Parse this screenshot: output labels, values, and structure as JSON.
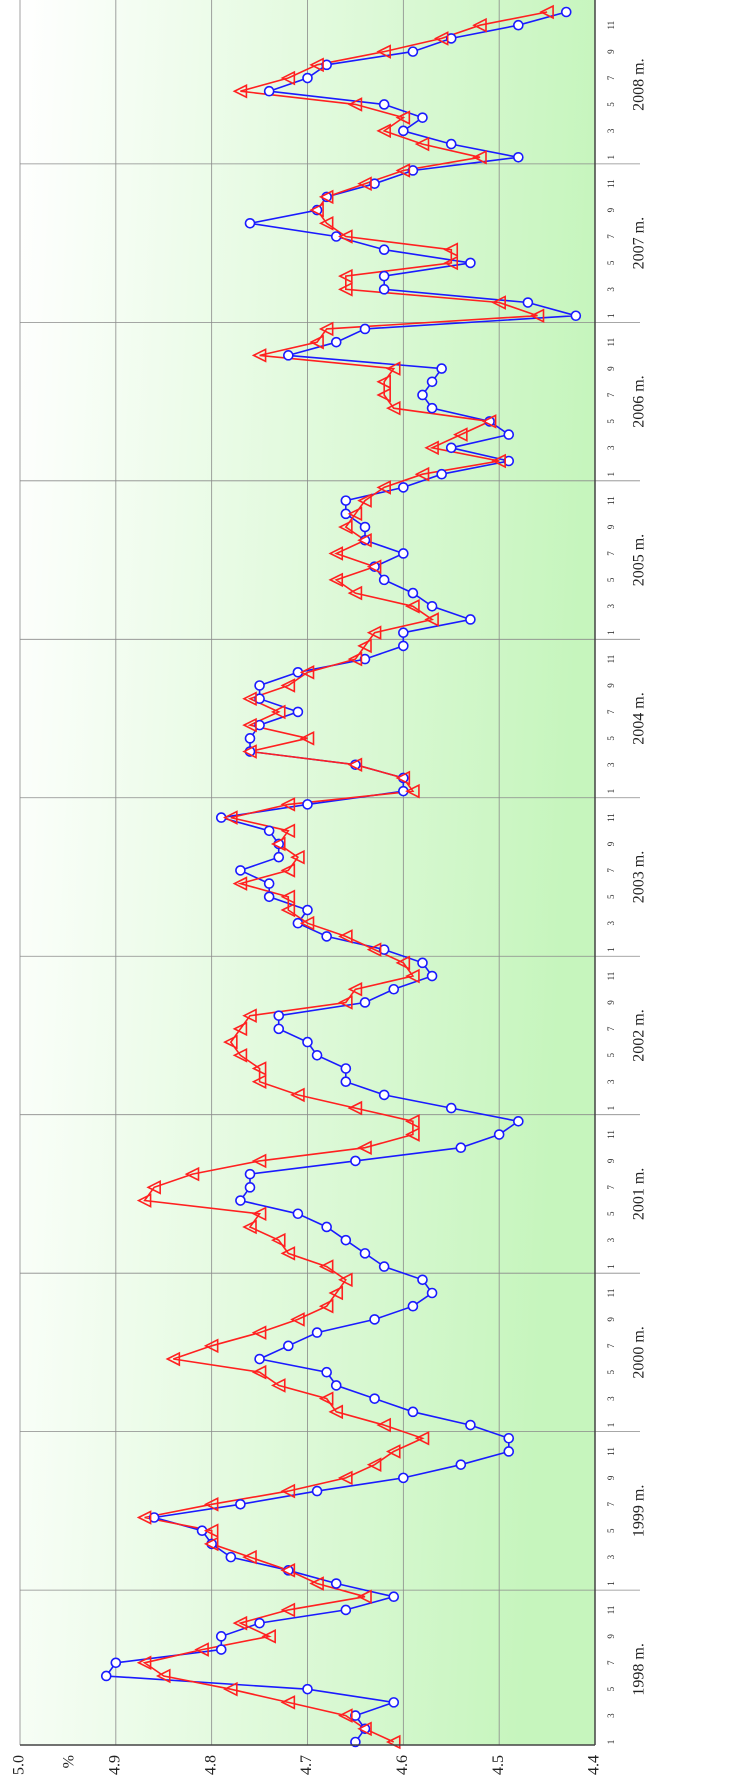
{
  "chart_data": {
    "type": "line",
    "axis_label": "%",
    "years": [
      "1998 m.",
      "1999 m.",
      "2000 m.",
      "2001 m.",
      "2002 m.",
      "2003 m.",
      "2004 m.",
      "2005 m.",
      "2006 m.",
      "2007 m.",
      "2008 m."
    ],
    "month_labels": [
      "1",
      "3",
      "5",
      "7",
      "9",
      "11"
    ],
    "ylim": [
      4.4,
      5.0
    ],
    "yticks": [
      {
        "value": 5.0,
        "label": "5.0"
      },
      4.9,
      4.8,
      4.7,
      4.6,
      4.5,
      4.4
    ],
    "grid": true,
    "series": [
      {
        "color": "#1a1aff",
        "marker": "circle",
        "values": [
          4.65,
          4.64,
          4.65,
          4.61,
          4.7,
          4.91,
          4.9,
          4.79,
          4.79,
          4.75,
          4.66,
          4.61,
          4.67,
          4.72,
          4.78,
          4.8,
          4.81,
          4.86,
          4.77,
          4.69,
          4.6,
          4.54,
          4.49,
          4.49,
          4.53,
          4.59,
          4.63,
          4.67,
          4.68,
          4.75,
          4.72,
          4.69,
          4.63,
          4.59,
          4.57,
          4.58,
          4.62,
          4.64,
          4.66,
          4.68,
          4.71,
          4.77,
          4.76,
          4.76,
          4.65,
          4.54,
          4.5,
          4.48,
          4.55,
          4.62,
          4.66,
          4.66,
          4.69,
          4.7,
          4.73,
          4.73,
          4.64,
          4.61,
          4.57,
          4.58,
          4.62,
          4.68,
          4.71,
          4.7,
          4.74,
          4.74,
          4.77,
          4.73,
          4.73,
          4.74,
          4.79,
          4.7,
          4.6,
          4.6,
          4.65,
          4.76,
          4.76,
          4.75,
          4.71,
          4.75,
          4.75,
          4.71,
          4.64,
          4.6,
          4.6,
          4.53,
          4.57,
          4.59,
          4.62,
          4.63,
          4.6,
          4.64,
          4.64,
          4.66,
          4.66,
          4.6,
          4.56,
          4.49,
          4.55,
          4.49,
          4.51,
          4.57,
          4.58,
          4.57,
          4.56,
          4.72,
          4.67,
          4.64,
          4.42,
          4.47,
          4.62,
          4.62,
          4.53,
          4.62,
          4.67,
          4.76,
          4.69,
          4.68,
          4.63,
          4.59,
          4.48,
          4.55,
          4.6,
          4.58,
          4.62,
          4.74,
          4.7,
          4.68,
          4.59,
          4.55,
          4.48,
          4.43
        ]
      },
      {
        "color": "#ff2020",
        "marker": "triangle",
        "values": [
          4.61,
          4.64,
          4.66,
          4.72,
          4.78,
          4.85,
          4.87,
          4.81,
          4.74,
          4.77,
          4.72,
          4.64,
          4.69,
          4.72,
          4.76,
          4.8,
          4.8,
          4.87,
          4.8,
          4.72,
          4.66,
          4.63,
          4.61,
          4.58,
          4.62,
          4.67,
          4.68,
          4.73,
          4.75,
          4.84,
          4.8,
          4.75,
          4.71,
          4.68,
          4.67,
          4.66,
          4.68,
          4.72,
          4.73,
          4.76,
          4.75,
          4.87,
          4.86,
          4.82,
          4.75,
          4.64,
          4.59,
          4.59,
          4.65,
          4.71,
          4.75,
          4.75,
          4.77,
          4.78,
          4.77,
          4.76,
          4.66,
          4.65,
          4.59,
          4.6,
          4.63,
          4.66,
          4.7,
          4.72,
          4.72,
          4.77,
          4.72,
          4.71,
          4.73,
          4.72,
          4.78,
          4.72,
          4.59,
          4.6,
          4.65,
          4.76,
          4.7,
          4.76,
          4.73,
          4.76,
          4.72,
          4.7,
          4.65,
          4.64,
          4.63,
          4.57,
          4.59,
          4.65,
          4.67,
          4.63,
          4.67,
          4.64,
          4.66,
          4.65,
          4.64,
          4.62,
          4.58,
          4.5,
          4.57,
          4.54,
          4.51,
          4.61,
          4.62,
          4.62,
          4.61,
          4.75,
          4.69,
          4.68,
          4.46,
          4.5,
          4.66,
          4.66,
          4.55,
          4.55,
          4.66,
          4.68,
          4.69,
          4.68,
          4.64,
          4.6,
          4.52,
          4.58,
          4.62,
          4.6,
          4.65,
          4.77,
          4.72,
          4.69,
          4.62,
          4.56,
          4.52,
          4.45
        ]
      }
    ]
  }
}
